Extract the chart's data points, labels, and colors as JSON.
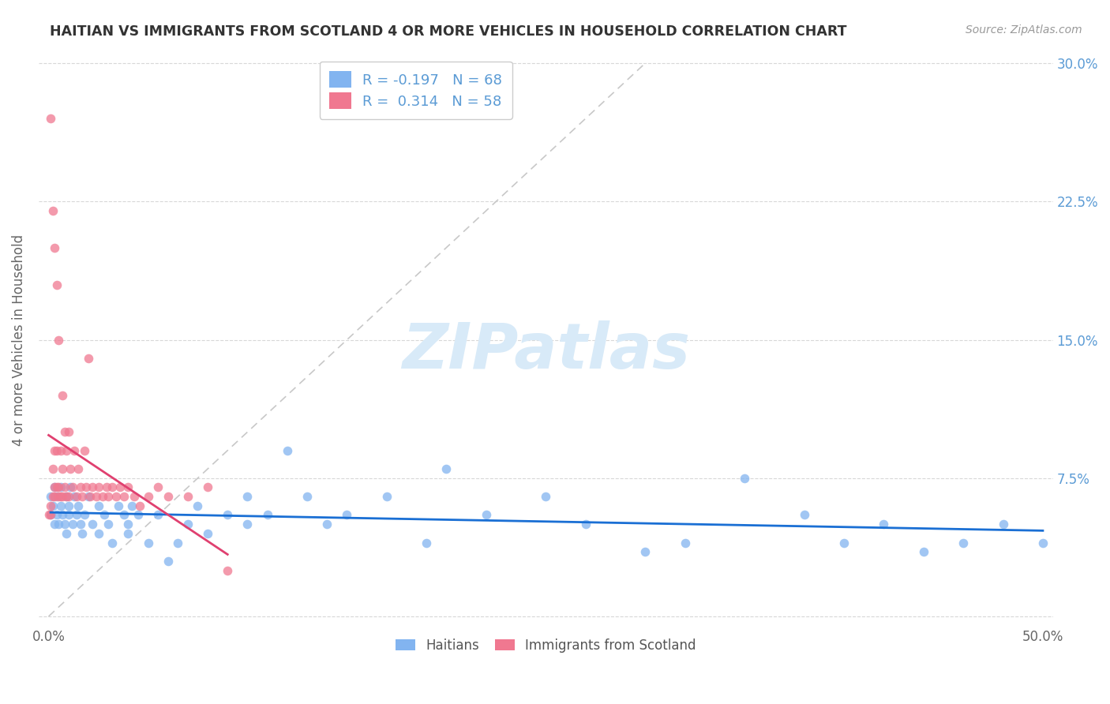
{
  "title": "HAITIAN VS IMMIGRANTS FROM SCOTLAND 4 OR MORE VEHICLES IN HOUSEHOLD CORRELATION CHART",
  "source": "Source: ZipAtlas.com",
  "ylabel": "4 or more Vehicles in Household",
  "xlim": [
    0.0,
    0.5
  ],
  "ylim": [
    0.0,
    0.3
  ],
  "xtick_positions": [
    0.0,
    0.1,
    0.2,
    0.3,
    0.4,
    0.5
  ],
  "xtick_labels": [
    "0.0%",
    "",
    "",
    "",
    "",
    "50.0%"
  ],
  "ytick_positions": [
    0.0,
    0.075,
    0.15,
    0.225,
    0.3
  ],
  "ytick_labels_right": [
    "",
    "7.5%",
    "15.0%",
    "22.5%",
    "30.0%"
  ],
  "haitian_color": "#82b4f0",
  "scotland_color": "#f07890",
  "haitian_trend_color": "#1a6fd4",
  "scotland_trend_color": "#e04070",
  "diagonal_color": "#c8c8c8",
  "watermark_color": "#d8eaf8",
  "watermark_text": "ZIPatlas",
  "haitian_R": -0.197,
  "haitian_N": 68,
  "scotland_R": 0.314,
  "scotland_N": 58,
  "legend_label_haitian": "R = -0.197   N = 68",
  "legend_label_scotland": "R =  0.314   N = 58",
  "bottom_label_haitian": "Haitians",
  "bottom_label_scotland": "Immigrants from Scotland",
  "haitian_x": [
    0.001,
    0.001,
    0.002,
    0.003,
    0.003,
    0.004,
    0.004,
    0.005,
    0.006,
    0.006,
    0.007,
    0.008,
    0.009,
    0.009,
    0.01,
    0.01,
    0.011,
    0.012,
    0.013,
    0.014,
    0.015,
    0.016,
    0.017,
    0.018,
    0.02,
    0.022,
    0.025,
    0.025,
    0.028,
    0.03,
    0.032,
    0.035,
    0.038,
    0.04,
    0.04,
    0.042,
    0.045,
    0.05,
    0.055,
    0.06,
    0.065,
    0.07,
    0.075,
    0.08,
    0.09,
    0.1,
    0.1,
    0.11,
    0.12,
    0.13,
    0.14,
    0.15,
    0.17,
    0.19,
    0.2,
    0.22,
    0.25,
    0.27,
    0.3,
    0.32,
    0.35,
    0.38,
    0.4,
    0.42,
    0.44,
    0.46,
    0.48,
    0.5
  ],
  "haitian_y": [
    0.055,
    0.065,
    0.06,
    0.05,
    0.07,
    0.055,
    0.065,
    0.05,
    0.06,
    0.07,
    0.055,
    0.05,
    0.065,
    0.045,
    0.055,
    0.06,
    0.07,
    0.05,
    0.065,
    0.055,
    0.06,
    0.05,
    0.045,
    0.055,
    0.065,
    0.05,
    0.06,
    0.045,
    0.055,
    0.05,
    0.04,
    0.06,
    0.055,
    0.045,
    0.05,
    0.06,
    0.055,
    0.04,
    0.055,
    0.03,
    0.04,
    0.05,
    0.06,
    0.045,
    0.055,
    0.05,
    0.065,
    0.055,
    0.09,
    0.065,
    0.05,
    0.055,
    0.065,
    0.04,
    0.08,
    0.055,
    0.065,
    0.05,
    0.035,
    0.04,
    0.075,
    0.055,
    0.04,
    0.05,
    0.035,
    0.04,
    0.05,
    0.04
  ],
  "scotland_x": [
    0.0,
    0.001,
    0.001,
    0.001,
    0.002,
    0.002,
    0.002,
    0.003,
    0.003,
    0.003,
    0.003,
    0.004,
    0.004,
    0.004,
    0.005,
    0.005,
    0.005,
    0.006,
    0.006,
    0.007,
    0.007,
    0.007,
    0.008,
    0.008,
    0.009,
    0.009,
    0.01,
    0.01,
    0.011,
    0.012,
    0.013,
    0.014,
    0.015,
    0.016,
    0.017,
    0.018,
    0.019,
    0.02,
    0.021,
    0.022,
    0.024,
    0.025,
    0.027,
    0.029,
    0.03,
    0.032,
    0.034,
    0.036,
    0.038,
    0.04,
    0.043,
    0.046,
    0.05,
    0.055,
    0.06,
    0.07,
    0.08,
    0.09
  ],
  "scotland_y": [
    0.055,
    0.055,
    0.27,
    0.06,
    0.22,
    0.08,
    0.065,
    0.2,
    0.09,
    0.07,
    0.065,
    0.18,
    0.09,
    0.07,
    0.15,
    0.065,
    0.07,
    0.09,
    0.065,
    0.12,
    0.08,
    0.065,
    0.1,
    0.07,
    0.09,
    0.065,
    0.1,
    0.065,
    0.08,
    0.07,
    0.09,
    0.065,
    0.08,
    0.07,
    0.065,
    0.09,
    0.07,
    0.14,
    0.065,
    0.07,
    0.065,
    0.07,
    0.065,
    0.07,
    0.065,
    0.07,
    0.065,
    0.07,
    0.065,
    0.07,
    0.065,
    0.06,
    0.065,
    0.07,
    0.065,
    0.065,
    0.07,
    0.025
  ]
}
